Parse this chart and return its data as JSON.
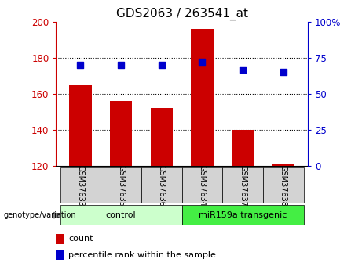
{
  "title": "GDS2063 / 263541_at",
  "samples": [
    "GSM37633",
    "GSM37635",
    "GSM37636",
    "GSM37634",
    "GSM37637",
    "GSM37638"
  ],
  "counts": [
    165,
    156,
    152,
    196,
    140,
    121
  ],
  "percentile_ranks": [
    70,
    70,
    70,
    72,
    67,
    65
  ],
  "ylim_left": [
    120,
    200
  ],
  "ylim_right": [
    0,
    100
  ],
  "yticks_left": [
    120,
    140,
    160,
    180,
    200
  ],
  "yticks_right": [
    0,
    25,
    50,
    75,
    100
  ],
  "bar_color": "#cc0000",
  "dot_color": "#0000cc",
  "grid_color": "#000000",
  "groups": [
    {
      "label": "control",
      "indices": [
        0,
        1,
        2
      ],
      "color": "#ccffcc"
    },
    {
      "label": "miR159a transgenic",
      "indices": [
        3,
        4,
        5
      ],
      "color": "#44ee44"
    }
  ],
  "xlabel_text": "genotype/variation",
  "legend_count_label": "count",
  "legend_pct_label": "percentile rank within the sample",
  "background_color": "#ffffff",
  "plot_bg_color": "#ffffff",
  "tick_label_color_left": "#cc0000",
  "tick_label_color_right": "#0000cc",
  "title_fontsize": 11,
  "tick_fontsize": 8.5,
  "bar_width": 0.55,
  "dot_size": 40,
  "sample_box_color": "#d3d3d3"
}
